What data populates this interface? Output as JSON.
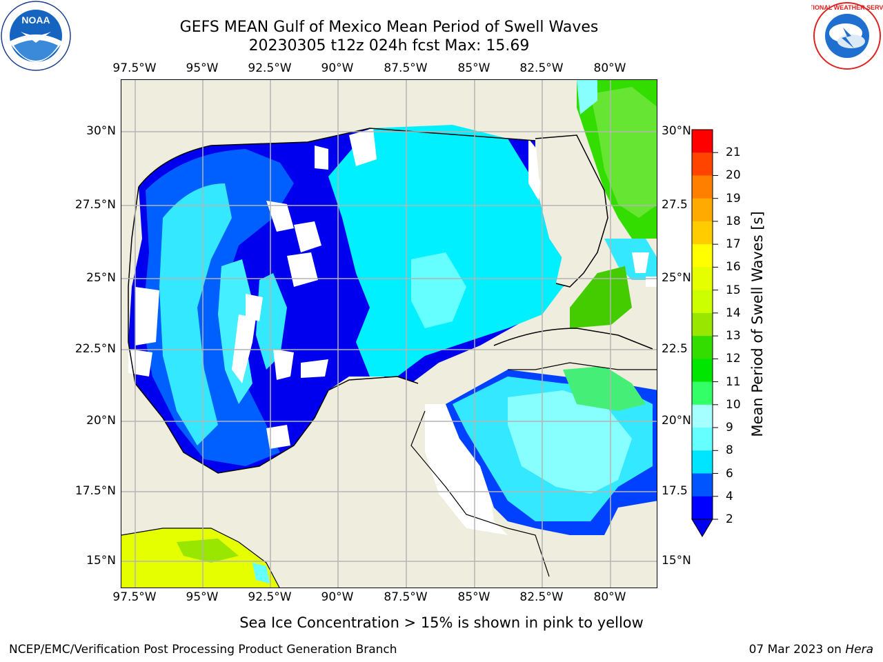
{
  "title": {
    "line1": "GEFS MEAN Gulf of Mexico Mean Period of Swell Waves",
    "line2": "20230305 t12z 024h fcst   Max: 15.69"
  },
  "logos": {
    "left": "NOAA",
    "right": "NATIONAL WEATHER SERVICE"
  },
  "map": {
    "lon_ticks": [
      "97.5°W",
      "95°W",
      "92.5°W",
      "90°W",
      "87.5°W",
      "85°W",
      "82.5°W",
      "80°W"
    ],
    "lat_ticks_left": [
      "30°N",
      "27.5°N",
      "25°N",
      "22.5°N",
      "20°N",
      "17.5°N",
      "15°N"
    ],
    "lat_ticks_right": [
      "30°N",
      "27.5",
      "25°N",
      "22.5",
      "20°N",
      "17.5",
      "15°N"
    ],
    "land_color": "#efeddd",
    "grid_color": "#b0b0b0"
  },
  "colorbar": {
    "label": "Mean Period of Swell Waves [s]",
    "ticks": [
      "2",
      "4",
      "6",
      "8",
      "9",
      "10",
      "11",
      "12",
      "13",
      "14",
      "15",
      "16",
      "17",
      "18",
      "19",
      "20",
      "21"
    ],
    "colors": [
      "#0000ff",
      "#0055ff",
      "#00e5ff",
      "#66ffff",
      "#a6ffff",
      "#33ff66",
      "#00e600",
      "#33dd00",
      "#99e600",
      "#ccff00",
      "#e6ff00",
      "#ffff00",
      "#ffcc00",
      "#ffaa00",
      "#ff7f00",
      "#ff4400",
      "#ff0000"
    ]
  },
  "note": "Sea Ice Concentration > 15% is shown in pink to yellow",
  "footer": {
    "left": "NCEP/EMC/Verification Post Processing Product Generation Branch",
    "right_prefix": "07 Mar 2023 on ",
    "right_italic": "Hera"
  }
}
